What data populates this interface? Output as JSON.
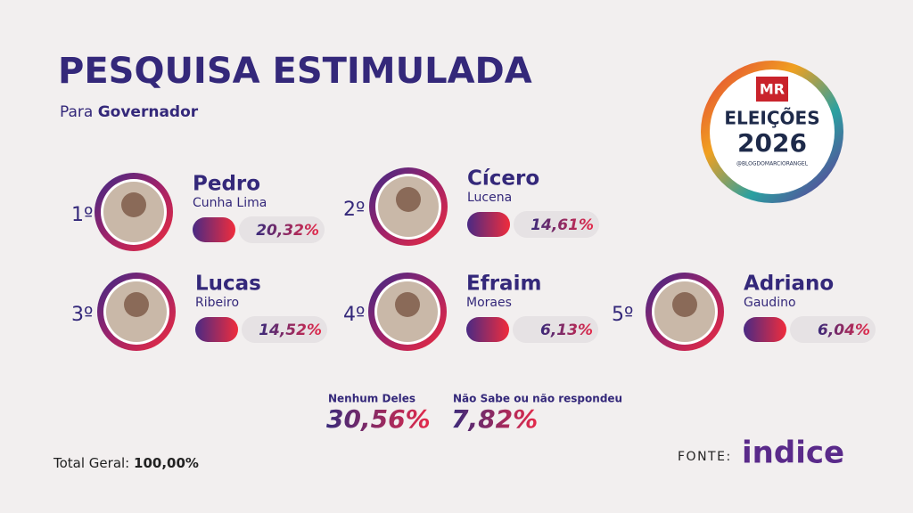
{
  "header": {
    "title": "PESQUISA ESTIMULADA",
    "subtitle_prefix": "Para",
    "subtitle_main": "Governador"
  },
  "logo": {
    "brand": "MR",
    "line1": "ELEIÇÕES",
    "line2": "2026",
    "handle": "@BLOGDOMARCIORANGEL"
  },
  "candidates": [
    {
      "rank": "1º",
      "first_name": "Pedro",
      "last_name": "Cunha Lima",
      "percent": "20,32%"
    },
    {
      "rank": "2º",
      "first_name": "Cícero",
      "last_name": "Lucena",
      "percent": "14,61%"
    },
    {
      "rank": "3º",
      "first_name": "Lucas",
      "last_name": "Ribeiro",
      "percent": "14,52%"
    },
    {
      "rank": "4º",
      "first_name": "Efraim",
      "last_name": "Moraes",
      "percent": "6,13%"
    },
    {
      "rank": "5º",
      "first_name": "Adriano",
      "last_name": "Gaudino",
      "percent": "6,04%"
    }
  ],
  "others": [
    {
      "label": "Nenhum Deles",
      "percent": "30,56%"
    },
    {
      "label": "Não Sabe ou não respondeu",
      "percent": "7,82%"
    }
  ],
  "total": {
    "label": "Total Geral:",
    "value": "100,00%"
  },
  "source": {
    "label": "FONTE:",
    "name": "indice"
  }
}
